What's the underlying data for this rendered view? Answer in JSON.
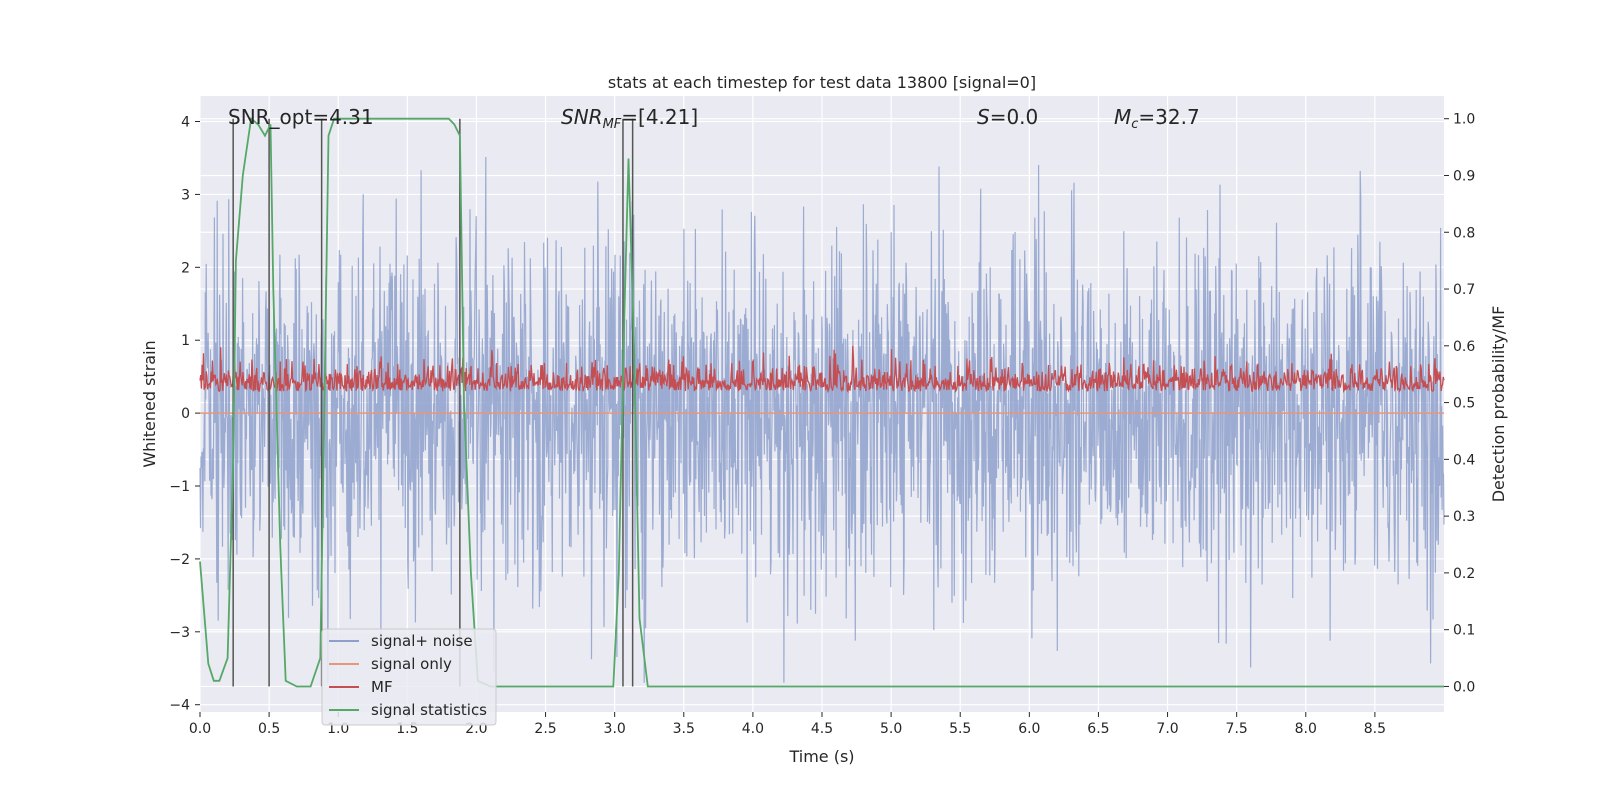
{
  "chart_data": {
    "type": "line",
    "title": "stats at each timestep for test data 13800 [signal=0]",
    "xlabel": "Time (s)",
    "ylabel_left": "Whitened strain",
    "ylabel_right": "Detection probability/MF",
    "xlim": [
      0,
      9.0
    ],
    "ylim_left": [
      -4.1,
      4.35
    ],
    "ylim_right": [
      -0.045,
      1.04
    ],
    "x_ticks": [
      "0.0",
      "0.5",
      "1.0",
      "1.5",
      "2.0",
      "2.5",
      "3.0",
      "3.5",
      "4.0",
      "4.5",
      "5.0",
      "5.5",
      "6.0",
      "6.5",
      "7.0",
      "7.5",
      "8.0",
      "8.5"
    ],
    "y_left_ticks": [
      "4",
      "3",
      "2",
      "1",
      "0",
      "−1",
      "−2",
      "−3",
      "−4"
    ],
    "y_right_ticks": [
      "1.0",
      "0.9",
      "0.8",
      "0.7",
      "0.6",
      "0.5",
      "0.4",
      "0.3",
      "0.2",
      "0.1",
      "0.0"
    ],
    "grid": true,
    "legend_position": "lower-left",
    "annotations": {
      "snr_opt": "SNR_opt=4.31",
      "snr_mf_base": "SNR",
      "snr_mf_sub": "MF",
      "snr_mf_rest": "=[4.21]",
      "s_label": "S",
      "s_rest": "=0.0",
      "mc_base": "M",
      "mc_sub": "c",
      "mc_rest": "=32.7"
    },
    "series": [
      {
        "name": "signal+ noise",
        "color": "#8da0cb",
        "axis": "left",
        "amplitude_range": [
          -3.7,
          3.8
        ]
      },
      {
        "name": "signal only",
        "color": "#e9967a",
        "axis": "left",
        "values": [
          0
        ]
      },
      {
        "name": "MF",
        "color": "#c44e52",
        "axis": "right",
        "range": [
          0.5,
          0.6
        ]
      },
      {
        "name": "signal statistics",
        "color": "#55a868",
        "axis": "right",
        "x": [
          0.0,
          0.06,
          0.1,
          0.14,
          0.2,
          0.24,
          0.26,
          0.31,
          0.37,
          0.42,
          0.47,
          0.51,
          0.53,
          0.58,
          0.62,
          0.7,
          0.8,
          0.87,
          0.9,
          0.93,
          0.97,
          1.02,
          1.2,
          1.5,
          1.8,
          1.84,
          1.88,
          1.91,
          1.96,
          2.01,
          2.1,
          2.5,
          2.99,
          3.03,
          3.07,
          3.1,
          3.14,
          3.18,
          3.24,
          3.3,
          4.0,
          5.0,
          6.0,
          7.0,
          8.0,
          9.0
        ],
        "values": [
          0.22,
          0.04,
          0.01,
          0.01,
          0.05,
          0.4,
          0.75,
          0.9,
          1.0,
          0.99,
          0.97,
          0.99,
          0.7,
          0.25,
          0.01,
          0.0,
          0.0,
          0.05,
          0.5,
          0.97,
          1.0,
          1.0,
          1.0,
          1.0,
          1.0,
          0.99,
          0.97,
          0.5,
          0.2,
          0.01,
          0.0,
          0.0,
          0.0,
          0.2,
          0.65,
          0.93,
          0.6,
          0.12,
          0.0,
          0.0,
          0.0,
          0.0,
          0.0,
          0.0,
          0.0,
          0.0
        ]
      }
    ],
    "vertical_markers": [
      0.24,
      0.5,
      0.88,
      1.88,
      3.06,
      3.13
    ]
  }
}
